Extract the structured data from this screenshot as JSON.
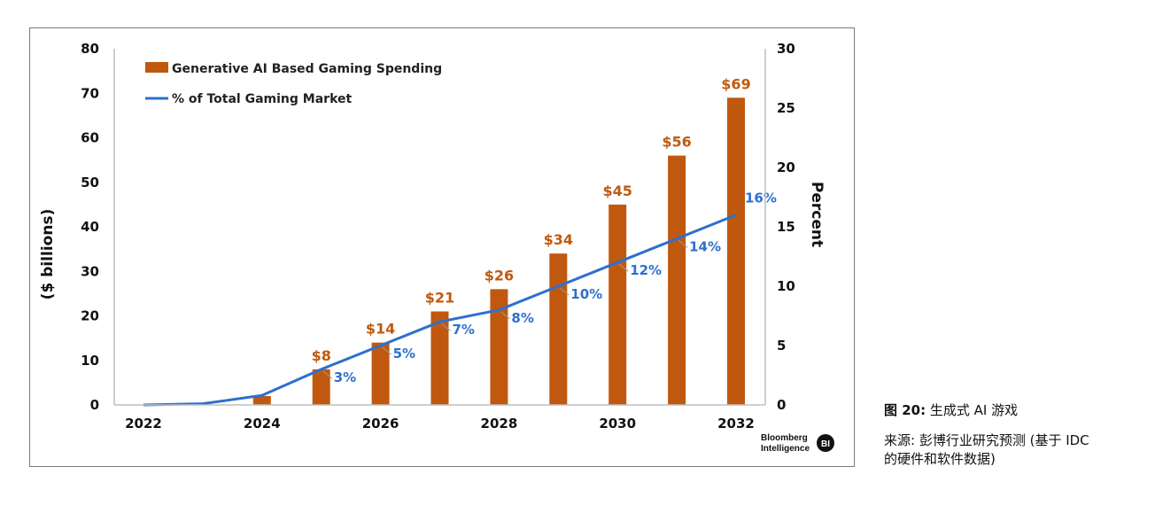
{
  "chart_data": {
    "type": "bar+line",
    "categories": [
      "2022",
      "2023",
      "2024",
      "2025",
      "2026",
      "2027",
      "2028",
      "2029",
      "2030",
      "2031",
      "2032"
    ],
    "x_tick_labels": [
      "2022",
      "2024",
      "2026",
      "2028",
      "2030",
      "2032"
    ],
    "series": [
      {
        "name": "Generative AI Based Gaming Spending",
        "type": "bar",
        "axis": "left",
        "values": [
          0,
          0,
          2,
          8,
          14,
          21,
          26,
          34,
          45,
          56,
          69
        ],
        "data_labels": [
          null,
          null,
          null,
          "$8",
          "$14",
          "$21",
          "$26",
          "$34",
          "$45",
          "$56",
          "$69"
        ],
        "color": "#C0590F"
      },
      {
        "name": "% of Total Gaming Market",
        "type": "line",
        "axis": "right",
        "values": [
          0,
          0.1,
          0.8,
          3,
          5,
          7,
          8,
          10,
          12,
          14,
          16
        ],
        "data_labels": [
          null,
          null,
          null,
          "3%",
          "5%",
          "7%",
          "8%",
          "10%",
          "12%",
          "14%",
          "16%"
        ],
        "color": "#2E6FD0"
      }
    ],
    "ylabel": "($ billions)",
    "y2label": "Percent",
    "ylim": [
      0,
      80
    ],
    "y_ticks": [
      0,
      10,
      20,
      30,
      40,
      50,
      60,
      70,
      80
    ],
    "y2lim": [
      0,
      30
    ],
    "y2_ticks": [
      0,
      5,
      10,
      15,
      20,
      25,
      30
    ],
    "legend_position": "top-left",
    "grid": false,
    "label_color_bar": "#C0590F",
    "label_color_line": "#2E6FD0"
  },
  "brand": {
    "line1": "Bloomberg",
    "line2": "Intelligence",
    "badge": "BI"
  },
  "caption": {
    "figure_label": "图 20:",
    "figure_title": "生成式 AI 游戏",
    "source_line1": "来源: 彭博行业研究预测 (基于 IDC",
    "source_line2": "的硬件和软件数据)"
  }
}
